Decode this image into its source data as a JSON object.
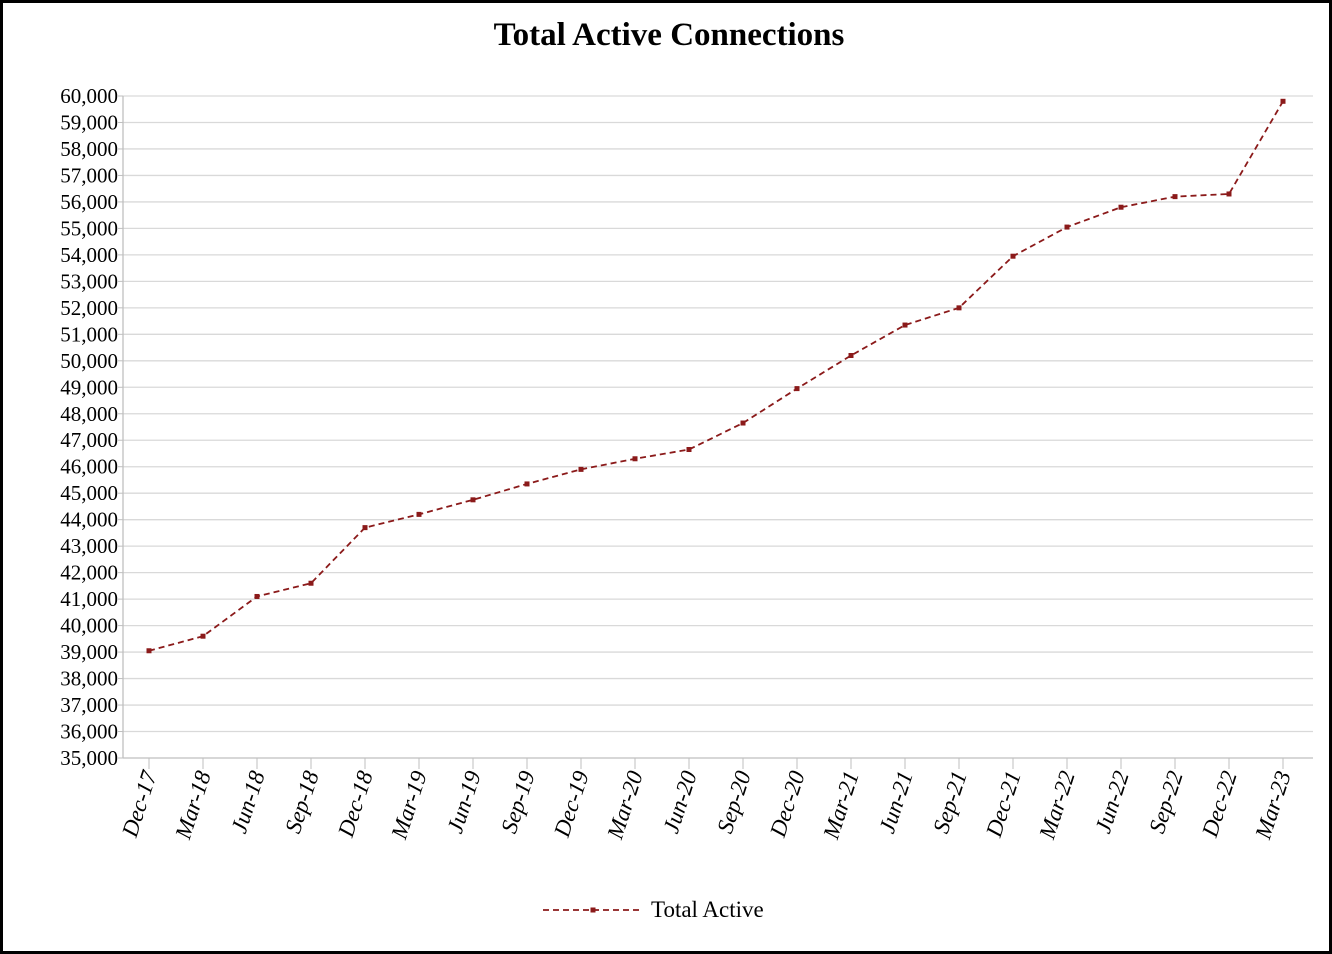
{
  "chart_data": {
    "type": "line",
    "title": "Total Active Connections",
    "xlabel": "",
    "ylabel": "",
    "categories": [
      "Dec-17",
      "Mar-18",
      "Jun-18",
      "Sep-18",
      "Dec-18",
      "Mar-19",
      "Jun-19",
      "Sep-19",
      "Dec-19",
      "Mar-20",
      "Jun-20",
      "Sep-20",
      "Dec-20",
      "Mar-21",
      "Jun-21",
      "Sep-21",
      "Dec-21",
      "Mar-22",
      "Jun-22",
      "Sep-22",
      "Dec-22",
      "Mar-23"
    ],
    "series": [
      {
        "name": "Total Active",
        "color": "#8B1A1A",
        "line_style": "dashed",
        "marker": "square",
        "values": [
          39050,
          39600,
          41100,
          41600,
          43700,
          44200,
          44750,
          45350,
          45900,
          46300,
          46650,
          47650,
          48950,
          50200,
          51350,
          52000,
          53950,
          55050,
          55800,
          56200,
          56300,
          59800
        ]
      }
    ],
    "ylim": [
      35000,
      60000
    ],
    "ytick_step": 1000,
    "grid": true,
    "legend_position": "bottom-center"
  }
}
